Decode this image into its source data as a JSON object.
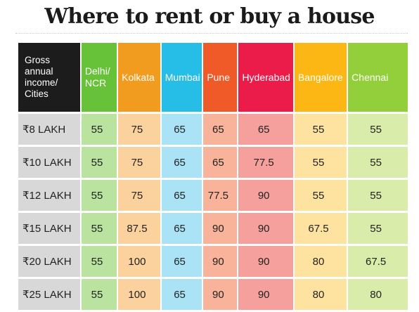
{
  "title": "Where to rent or buy a house",
  "colors": {
    "header": [
      "#1c1c1c",
      "#67c23a",
      "#f29c1f",
      "#26bde6",
      "#f05a28",
      "#ec1c4a",
      "#fdb714",
      "#93cf3a"
    ],
    "cell": [
      "#d8d8d8",
      "#b9e39f",
      "#fbd19d",
      "#a9e3f5",
      "#f9b39a",
      "#f6a09d",
      "#fde39f",
      "#d9ecaa"
    ]
  },
  "chart_data": {
    "type": "table",
    "title": "Where to rent or buy a house",
    "row_header_label": "Gross annual income/ Cities",
    "columns": [
      "Delhi/ NCR",
      "Kolkata",
      "Mumbai",
      "Pune",
      "Hyderabad",
      "Bangalore",
      "Chennai"
    ],
    "rows": [
      {
        "label": "₹8 LAKH",
        "values": [
          "55",
          "75",
          "65",
          "65",
          "65",
          "55",
          "55"
        ]
      },
      {
        "label": "₹10 LAKH",
        "values": [
          "55",
          "75",
          "65",
          "65",
          "77.5",
          "55",
          "55"
        ]
      },
      {
        "label": "₹12 LAKH",
        "values": [
          "55",
          "75",
          "65",
          "77.5",
          "90",
          "55",
          "55"
        ]
      },
      {
        "label": "₹15 LAKH",
        "values": [
          "55",
          "87.5",
          "65",
          "90",
          "90",
          "67.5",
          "55"
        ]
      },
      {
        "label": "₹20 LAKH",
        "values": [
          "55",
          "100",
          "65",
          "90",
          "90",
          "80",
          "67.5"
        ]
      },
      {
        "label": "₹25 LAKH",
        "values": [
          "55",
          "100",
          "65",
          "90",
          "90",
          "80",
          "80"
        ]
      }
    ]
  }
}
